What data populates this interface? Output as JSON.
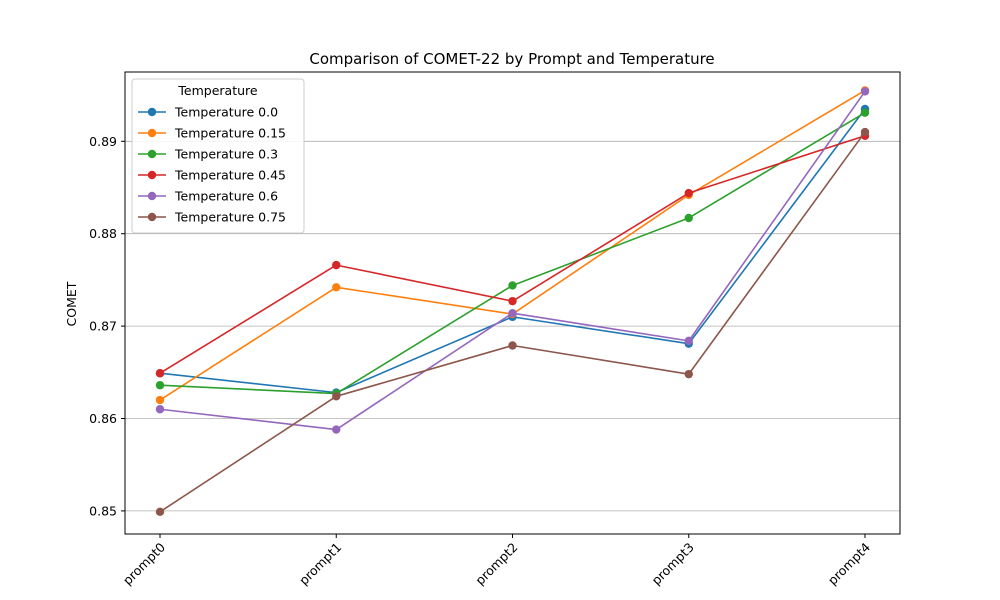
{
  "chart_data": {
    "type": "line",
    "title": "Comparison of COMET-22 by Prompt and Temperature",
    "xlabel": "",
    "ylabel": "COMET",
    "categories": [
      "prompt0",
      "prompt1",
      "prompt2",
      "prompt3",
      "prompt4"
    ],
    "ylim": [
      0.8475,
      0.8975
    ],
    "yticks": [
      "0.85",
      "0.86",
      "0.87",
      "0.88",
      "0.89"
    ],
    "grid": "horizontal",
    "legend": {
      "title": "Temperature",
      "position": "top-left"
    },
    "series": [
      {
        "name": "Temperature 0.0",
        "color": "#1f77b4",
        "values": [
          0.8649,
          0.8628,
          0.871,
          0.8681,
          0.8935
        ]
      },
      {
        "name": "Temperature 0.15",
        "color": "#ff7f0e",
        "values": [
          0.862,
          0.8742,
          0.8713,
          0.8842,
          0.8955
        ]
      },
      {
        "name": "Temperature 0.3",
        "color": "#2ca02c",
        "values": [
          0.8636,
          0.8627,
          0.8744,
          0.8817,
          0.8931
        ]
      },
      {
        "name": "Temperature 0.45",
        "color": "#d62728",
        "values": [
          0.8649,
          0.8766,
          0.8727,
          0.8844,
          0.8906
        ]
      },
      {
        "name": "Temperature 0.6",
        "color": "#9467bd",
        "values": [
          0.861,
          0.8588,
          0.8714,
          0.8684,
          0.8954
        ]
      },
      {
        "name": "Temperature 0.75",
        "color": "#8c564b",
        "values": [
          0.8499,
          0.8624,
          0.8679,
          0.8648,
          0.891
        ]
      }
    ]
  }
}
